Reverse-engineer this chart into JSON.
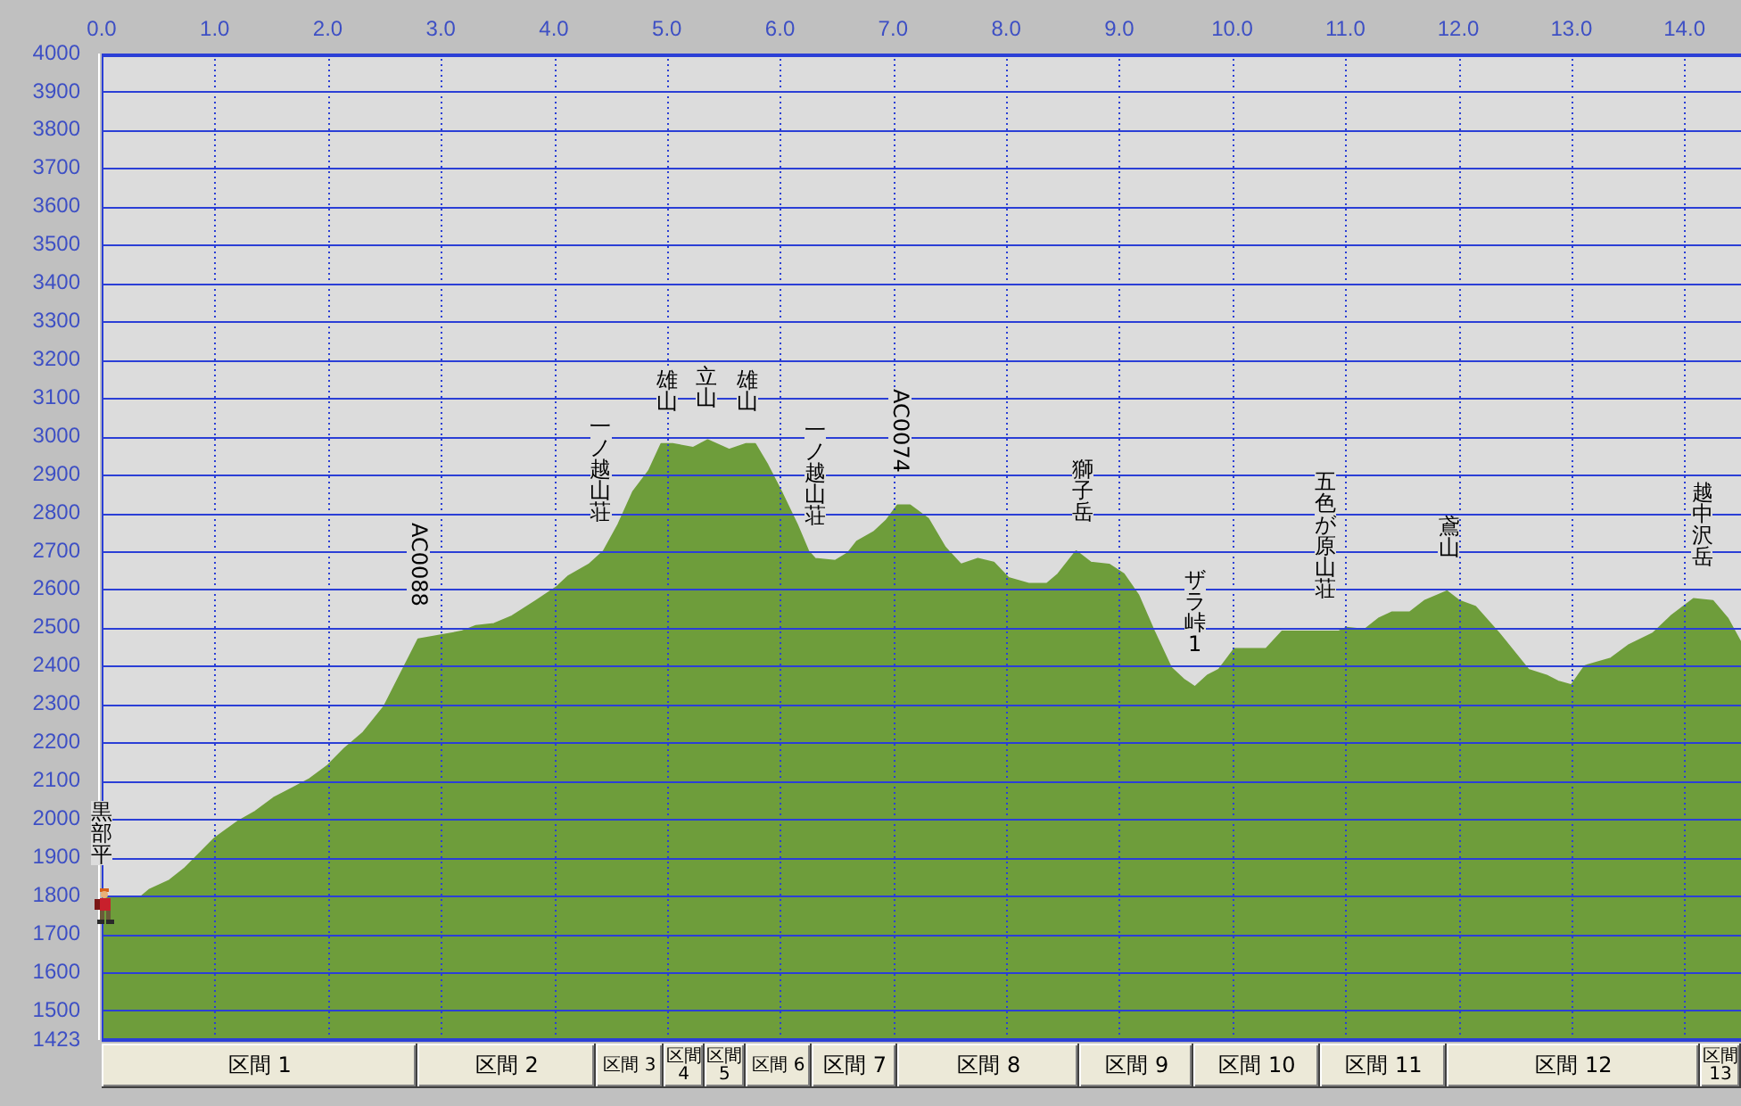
{
  "chart_data": [
    {
      "type": "area",
      "x": [
        0,
        0.34,
        0.42,
        0.6,
        0.73,
        1,
        1.21,
        1.36,
        1.52,
        1.68,
        1.84,
        2,
        2.15,
        2.31,
        2.5,
        2.68,
        2.8,
        3,
        3.18,
        3.31,
        3.47,
        3.63,
        3.84,
        4.02,
        4.13,
        4.31,
        4.44,
        4.57,
        4.7,
        4.84,
        4.95,
        5.05,
        5.23,
        5.36,
        5.55,
        5.7,
        5.78,
        5.89,
        6.02,
        6.15,
        6.25,
        6.31,
        6.49,
        6.6,
        6.68,
        6.83,
        6.94,
        7.04,
        7.15,
        7.31,
        7.46,
        7.6,
        7.75,
        7.89,
        8.02,
        8.2,
        8.36,
        8.46,
        8.62,
        8.75,
        8.91,
        9.04,
        9.17,
        9.31,
        9.46,
        9.57,
        9.67,
        9.78,
        9.88,
        10.02,
        10.3,
        10.44,
        10.62,
        10.94,
        11.01,
        11.17,
        11.3,
        11.41,
        11.57,
        11.7,
        11.9,
        12.01,
        12.15,
        12.36,
        12.62,
        12.78,
        12.88,
        13,
        13.12,
        13.35,
        13.51,
        13.72,
        13.88,
        14.08,
        14.25,
        14.38,
        14.5
      ],
      "values": [
        1795,
        1795,
        1815,
        1840,
        1870,
        1950,
        1995,
        2020,
        2055,
        2080,
        2105,
        2140,
        2185,
        2225,
        2295,
        2400,
        2470,
        2480,
        2490,
        2505,
        2510,
        2530,
        2570,
        2605,
        2635,
        2665,
        2700,
        2770,
        2855,
        2910,
        2980,
        2980,
        2970,
        2990,
        2965,
        2980,
        2980,
        2925,
        2850,
        2770,
        2700,
        2680,
        2675,
        2695,
        2725,
        2750,
        2780,
        2820,
        2820,
        2785,
        2710,
        2665,
        2680,
        2670,
        2630,
        2615,
        2615,
        2640,
        2700,
        2670,
        2665,
        2640,
        2585,
        2490,
        2395,
        2365,
        2345,
        2375,
        2390,
        2445,
        2445,
        2490,
        2490,
        2490,
        2500,
        2495,
        2525,
        2540,
        2540,
        2570,
        2595,
        2570,
        2555,
        2485,
        2390,
        2375,
        2360,
        2350,
        2400,
        2420,
        2455,
        2485,
        2530,
        2575,
        2570,
        2525,
        2460
      ],
      "color": "#6e9d3b",
      "xlim": [
        0,
        14.5
      ],
      "xticks": [
        {
          "value": 0,
          "label": "0.0"
        },
        {
          "value": 1,
          "label": "1.0"
        },
        {
          "value": 2,
          "label": "2.0"
        },
        {
          "value": 3,
          "label": "3.0"
        },
        {
          "value": 4,
          "label": "4.0"
        },
        {
          "value": 5,
          "label": "5.0"
        },
        {
          "value": 6,
          "label": "6.0"
        },
        {
          "value": 7,
          "label": "7.0"
        },
        {
          "value": 8,
          "label": "8.0"
        },
        {
          "value": 9,
          "label": "9.0"
        },
        {
          "value": 10,
          "label": "10.0"
        },
        {
          "value": 11,
          "label": "11.0"
        },
        {
          "value": 12,
          "label": "12.0"
        },
        {
          "value": 13,
          "label": "13.0"
        },
        {
          "value": 14,
          "label": "14.0"
        }
      ],
      "ylim": [
        1423,
        4000
      ],
      "yticks": [
        1423,
        1500,
        1600,
        1700,
        1800,
        1900,
        2000,
        2100,
        2200,
        2300,
        2400,
        2500,
        2600,
        2700,
        2800,
        2900,
        3000,
        3100,
        3200,
        3300,
        3400,
        3500,
        3600,
        3700,
        3800,
        3900,
        4000
      ],
      "grid": true,
      "annotations": [
        {
          "text": "黒部平",
          "x": 0,
          "y": 1795
        },
        {
          "text": "AC0088",
          "x": 2.8,
          "y": 2470
        },
        {
          "text": "一ノ越山荘",
          "x": 4.41,
          "y": 2690
        },
        {
          "text": "雄山",
          "x": 5,
          "y": 2980
        },
        {
          "text": "立山",
          "x": 5.35,
          "y": 2990
        },
        {
          "text": "雄山",
          "x": 5.71,
          "y": 2980
        },
        {
          "text": "一ノ越山荘",
          "x": 6.31,
          "y": 2680
        },
        {
          "text": "AC0074",
          "x": 7.06,
          "y": 2820
        },
        {
          "text": "獅子岳",
          "x": 8.68,
          "y": 2690
        },
        {
          "text": "ザラ峠1",
          "x": 9.67,
          "y": 2345
        },
        {
          "text": "五色が原山荘",
          "x": 10.82,
          "y": 2490
        },
        {
          "text": "鳶山",
          "x": 11.92,
          "y": 2595
        },
        {
          "text": "越中沢岳",
          "x": 14.16,
          "y": 2575
        }
      ]
    },
    {
      "type": "bar",
      "orientation": "horizontal",
      "stacked": true,
      "categories": [
        null
      ],
      "xlim": [
        0,
        14.5
      ],
      "tick_labels": false,
      "series": [
        {
          "name": "区間 1",
          "color": "#ece9d8",
          "values": [
            2.79
          ]
        },
        {
          "name": "区間 2",
          "color": "#ece9d8",
          "values": [
            1.58
          ]
        },
        {
          "name": "区間 3",
          "color": "#ece9d8",
          "values": [
            0.6
          ]
        },
        {
          "name": "区間 4",
          "color": "#ece9d8",
          "values": [
            0.36
          ]
        },
        {
          "name": "区間 5",
          "color": "#ece9d8",
          "values": [
            0.36
          ]
        },
        {
          "name": "区間 6",
          "color": "#ece9d8",
          "values": [
            0.59
          ]
        },
        {
          "name": "区間 7",
          "color": "#ece9d8",
          "values": [
            0.76
          ]
        },
        {
          "name": "区間 8",
          "color": "#ece9d8",
          "values": [
            1.61
          ]
        },
        {
          "name": "区間 9",
          "color": "#ece9d8",
          "values": [
            1.01
          ]
        },
        {
          "name": "区間 10",
          "color": "#ece9d8",
          "values": [
            1.12
          ]
        },
        {
          "name": "区間 11",
          "color": "#ece9d8",
          "values": [
            1.12
          ]
        },
        {
          "name": "区間 12",
          "color": "#ece9d8",
          "values": [
            2.24
          ]
        },
        {
          "name": "区間 13",
          "color": "#ece9d8",
          "values": [
            0.36
          ]
        }
      ]
    }
  ]
}
